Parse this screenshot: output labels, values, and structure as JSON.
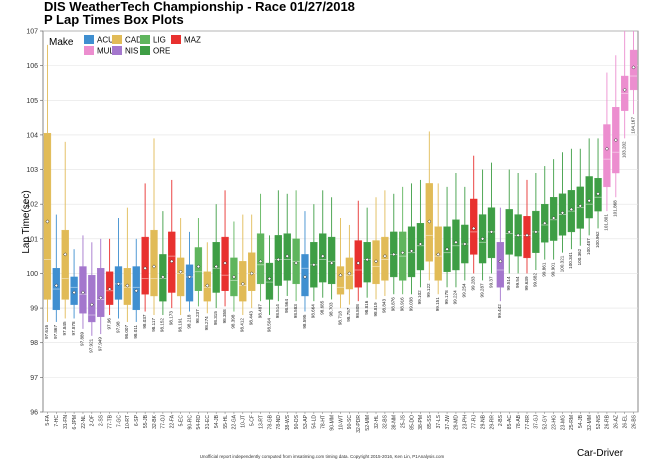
{
  "chart_data": {
    "type": "box",
    "title": "DIS WeatherTech Championship - Race 01/27/2018",
    "subtitle": "P Lap Times Box Plots",
    "xlabel": "Car-Driver",
    "ylabel": "Lap Time(sec)",
    "ylim": [
      96,
      107
    ],
    "yticks": [
      96,
      97,
      98,
      99,
      100,
      101,
      102,
      103,
      104,
      105,
      106,
      107
    ],
    "legend": {
      "title": "Make",
      "position": "top-left",
      "items": [
        {
          "name": "ACU",
          "color": "#3f8fd0"
        },
        {
          "name": "CAD",
          "color": "#e1bb57"
        },
        {
          "name": "LIG",
          "color": "#5fb55d"
        },
        {
          "name": "MAZ",
          "color": "#e8312f"
        },
        {
          "name": "MUL",
          "color": "#ec8ecf"
        },
        {
          "name": "NIS",
          "color": "#a477cd"
        },
        {
          "name": "ORE",
          "color": "#3e9e45"
        }
      ]
    },
    "footer": "Unofficial report independently computed from imsatiming.com timing data. Copyright 2015-2016, Ken Lin, P1Analysis.com",
    "series": [
      {
        "label": "5-FA",
        "make": "CAD",
        "q1": 99.25,
        "median": 100.4,
        "q3": 104.05,
        "mean": 101.5,
        "lo": 98.6,
        "hi": 106.6,
        "best": "97.616"
      },
      {
        "label": "7-HC",
        "make": "ACU",
        "q1": 98.95,
        "median": 99.55,
        "q3": 100.15,
        "mean": 99.65,
        "lo": 98.6,
        "hi": 101.7,
        "best": "97.867"
      },
      {
        "label": "31-FN",
        "make": "CAD",
        "q1": 99.25,
        "median": 99.85,
        "q3": 101.25,
        "mean": 100.55,
        "lo": 98.7,
        "hi": 103.8,
        "best": "97.845"
      },
      {
        "label": "6-JPM",
        "make": "ACU",
        "q1": 99.1,
        "median": 99.6,
        "q3": 99.9,
        "mean": 99.45,
        "lo": 98.7,
        "hi": 100.7,
        "best": "97.878"
      },
      {
        "label": "22-NL",
        "make": "NIS",
        "q1": 98.85,
        "median": 99.4,
        "q3": 100.2,
        "mean": 99.45,
        "lo": 98.4,
        "hi": 101.1,
        "best": "97.889"
      },
      {
        "label": "2-OF",
        "make": "NIS",
        "q1": 98.6,
        "median": 98.8,
        "q3": 99.95,
        "mean": 99.1,
        "lo": 98.2,
        "hi": 100.9,
        "best": "97.921"
      },
      {
        "label": "2-SS",
        "make": "NIS",
        "q1": 98.75,
        "median": 99.25,
        "q3": 100.15,
        "mean": 99.3,
        "lo": 98.25,
        "hi": 101.0,
        "best": "97.949"
      },
      {
        "label": "77-TB",
        "make": "MAZ",
        "q1": 99.1,
        "median": 99.5,
        "q3": 100.05,
        "mean": 99.55,
        "lo": 98.8,
        "hi": 101.0,
        "best": "97.96"
      },
      {
        "label": "7-GC",
        "make": "ACU",
        "q1": 99.25,
        "median": 99.7,
        "q3": 100.2,
        "mean": 99.7,
        "lo": 98.7,
        "hi": 101.6,
        "best": "97.98"
      },
      {
        "label": "10-RT",
        "make": "CAD",
        "q1": 99.1,
        "median": 99.6,
        "q3": 100.15,
        "mean": 99.65,
        "lo": 98.6,
        "hi": 101.9,
        "best": "98.007"
      },
      {
        "label": "6-SP",
        "make": "ACU",
        "q1": 98.95,
        "median": 99.6,
        "q3": 100.2,
        "mean": 99.5,
        "lo": 98.6,
        "hi": 101.0,
        "best": "98.011"
      },
      {
        "label": "55-JB",
        "make": "MAZ",
        "q1": 99.4,
        "median": 99.85,
        "q3": 101.05,
        "mean": 100.15,
        "lo": 98.9,
        "hi": 102.6,
        "best": "98.037"
      },
      {
        "label": "32-BK",
        "make": "CAD",
        "q1": 99.35,
        "median": 99.85,
        "q3": 101.25,
        "mean": 100.2,
        "lo": 98.8,
        "hi": 103.9,
        "best": "98.117"
      },
      {
        "label": "77-OJ",
        "make": "ORE",
        "q1": 99.2,
        "median": 99.85,
        "q3": 100.55,
        "mean": 99.9,
        "lo": 98.8,
        "hi": 101.8,
        "best": "98.152"
      },
      {
        "label": "22-FA",
        "make": "MAZ",
        "q1": 99.45,
        "median": 100.5,
        "q3": 101.2,
        "mean": 100.35,
        "lo": 99.0,
        "hi": 102.7,
        "best": "98.173"
      },
      {
        "label": "5-EC",
        "make": "CAD",
        "q1": 99.35,
        "median": 100.0,
        "q3": 100.45,
        "mean": 100.05,
        "lo": 98.8,
        "hi": 101.6,
        "best": "98.191"
      },
      {
        "label": "90-RC",
        "make": "ACU",
        "q1": 99.2,
        "median": 99.9,
        "q3": 100.25,
        "mean": 99.9,
        "lo": 98.9,
        "hi": 101.2,
        "best": "98.218"
      },
      {
        "label": "54-RD",
        "make": "LIG",
        "q1": 99.5,
        "median": 100.05,
        "q3": 100.75,
        "mean": 100.2,
        "lo": 99.05,
        "hi": 101.6,
        "best": "98.237"
      },
      {
        "label": "31-EC",
        "make": "CAD",
        "q1": 99.2,
        "median": 99.6,
        "q3": 100.05,
        "mean": 99.65,
        "lo": 98.85,
        "hi": 100.9,
        "best": "98.274"
      },
      {
        "label": "54-JB",
        "make": "ORE",
        "q1": 99.45,
        "median": 100.15,
        "q3": 100.9,
        "mean": 100.2,
        "lo": 99.0,
        "hi": 102.0,
        "best": "98.315"
      },
      {
        "label": "55-HL",
        "make": "MAZ",
        "q1": 99.5,
        "median": 99.95,
        "q3": 101.05,
        "mean": 100.3,
        "lo": 99.05,
        "hi": 102.4,
        "best": "98.358"
      },
      {
        "label": "22-GA",
        "make": "LIG",
        "q1": 99.35,
        "median": 99.8,
        "q3": 100.45,
        "mean": 99.9,
        "lo": 98.9,
        "hi": 101.5,
        "best": "98.398"
      },
      {
        "label": "10-JT",
        "make": "CAD",
        "q1": 99.2,
        "median": 99.65,
        "q3": 100.35,
        "mean": 99.7,
        "lo": 98.8,
        "hi": 101.7,
        "best": "98.412"
      },
      {
        "label": "5-CF",
        "make": "CAD",
        "q1": 99.5,
        "median": 100.0,
        "q3": 100.6,
        "mean": 100.0,
        "lo": 99.0,
        "hi": 101.7,
        "best": "98.443"
      },
      {
        "label": "13-RT",
        "make": "LIG",
        "q1": 99.7,
        "median": 100.25,
        "q3": 101.15,
        "mean": 100.35,
        "lo": 99.2,
        "hi": 102.3,
        "best": "98.487"
      },
      {
        "label": "78-GB",
        "make": "ORE",
        "q1": 99.25,
        "median": 99.75,
        "q3": 100.3,
        "mean": 99.85,
        "lo": 98.8,
        "hi": 101.1,
        "best": "98.504"
      },
      {
        "label": "78-ND",
        "make": "ORE",
        "q1": 99.65,
        "median": 100.4,
        "q3": 101.1,
        "mean": 100.4,
        "lo": 99.2,
        "hi": 102.4,
        "best": "98.514"
      },
      {
        "label": "38-WS",
        "make": "ORE",
        "q1": 99.8,
        "median": 100.4,
        "q3": 101.15,
        "mean": 100.5,
        "lo": 99.35,
        "hi": 102.3,
        "best": "98.564"
      },
      {
        "label": "90-DS",
        "make": "LIG",
        "q1": 99.7,
        "median": 100.35,
        "q3": 101.0,
        "mean": 100.3,
        "lo": 99.2,
        "hi": 102.4,
        "best": "98.583"
      },
      {
        "label": "53-AP",
        "make": "ACU",
        "q1": 99.35,
        "median": 100.15,
        "q3": 100.55,
        "mean": 99.9,
        "lo": 98.9,
        "hi": 101.8,
        "best": "98.595"
      },
      {
        "label": "54-LD",
        "make": "ORE",
        "q1": 99.6,
        "median": 100.25,
        "q3": 100.9,
        "mean": 100.25,
        "lo": 99.2,
        "hi": 102.0,
        "best": "98.664"
      },
      {
        "label": "78-HT",
        "make": "ORE",
        "q1": 99.75,
        "median": 100.4,
        "q3": 101.15,
        "mean": 100.5,
        "lo": 99.3,
        "hi": 102.4,
        "best": "98.685"
      },
      {
        "label": "90-MM",
        "make": "ORE",
        "q1": 99.7,
        "median": 100.35,
        "q3": 101.05,
        "mean": 100.3,
        "lo": 99.25,
        "hi": 102.2,
        "best": "98.703"
      },
      {
        "label": "10-WT",
        "make": "CAD",
        "q1": 99.4,
        "median": 99.6,
        "q3": 100.2,
        "mean": 99.95,
        "lo": 99.0,
        "hi": 101.6,
        "best": "98.718"
      },
      {
        "label": "90-SC",
        "make": "CAD",
        "q1": 99.55,
        "median": 99.95,
        "q3": 100.45,
        "mean": 100.0,
        "lo": 99.1,
        "hi": 101.4,
        "best": "98.757"
      },
      {
        "label": "32-PDR",
        "make": "MAZ",
        "q1": 99.6,
        "median": 100.1,
        "q3": 100.95,
        "mean": 100.3,
        "lo": 99.2,
        "hi": 102.1,
        "best": "98.808"
      },
      {
        "label": "52-MM",
        "make": "ORE",
        "q1": 99.75,
        "median": 100.4,
        "q3": 100.9,
        "mean": 100.4,
        "lo": 99.3,
        "hi": 101.9,
        "best": "98.816"
      },
      {
        "label": "32-HL",
        "make": "CAD",
        "q1": 99.7,
        "median": 100.2,
        "q3": 100.95,
        "mean": 100.35,
        "lo": 99.25,
        "hi": 102.2,
        "best": "98.819"
      },
      {
        "label": "32-BS",
        "make": "CAD",
        "q1": 99.8,
        "median": 100.4,
        "q3": 101.05,
        "mean": 100.5,
        "lo": 99.35,
        "hi": 102.4,
        "best": "98.843"
      },
      {
        "label": "38-NM",
        "make": "ORE",
        "q1": 99.9,
        "median": 100.55,
        "q3": 101.2,
        "mean": 100.55,
        "lo": 99.4,
        "hi": 102.3,
        "best": "98.876"
      },
      {
        "label": "25-JS",
        "make": "LIG",
        "q1": 99.8,
        "median": 100.5,
        "q3": 101.2,
        "mean": 100.6,
        "lo": 99.4,
        "hi": 102.5,
        "best": "98.916"
      },
      {
        "label": "85-DO",
        "make": "ORE",
        "q1": 99.9,
        "median": 100.6,
        "q3": 101.35,
        "mean": 100.65,
        "lo": 99.4,
        "hi": 102.6,
        "best": "99.038"
      },
      {
        "label": "38-PM",
        "make": "ORE",
        "q1": 100.1,
        "median": 100.8,
        "q3": 101.45,
        "mean": 100.85,
        "lo": 99.6,
        "hi": 102.7,
        "best": "99.102"
      },
      {
        "label": "85-SS",
        "make": "CAD",
        "q1": 100.35,
        "median": 101.1,
        "q3": 102.6,
        "mean": 101.5,
        "lo": 99.8,
        "hi": 104.1,
        "best": "99.122"
      },
      {
        "label": "37-LS",
        "make": "CAD",
        "q1": 99.8,
        "median": 100.5,
        "q3": 101.35,
        "mean": 100.55,
        "lo": 99.4,
        "hi": 102.6,
        "best": "99.151"
      },
      {
        "label": "37-JW",
        "make": "ORE",
        "q1": 100.05,
        "median": 100.6,
        "q3": 101.35,
        "mean": 100.7,
        "lo": 99.6,
        "hi": 102.5,
        "best": "99.178"
      },
      {
        "label": "29-MD",
        "make": "ORE",
        "q1": 100.1,
        "median": 100.8,
        "q3": 101.55,
        "mean": 100.9,
        "lo": 99.6,
        "hi": 102.9,
        "best": "99.224"
      },
      {
        "label": "23-PH",
        "make": "ORE",
        "q1": 100.3,
        "median": 100.85,
        "q3": 101.4,
        "mean": 100.85,
        "lo": 99.8,
        "hi": 102.5,
        "best": "99.254"
      },
      {
        "label": "77-RJ",
        "make": "MAZ",
        "q1": 100.55,
        "median": 101.2,
        "q3": 102.15,
        "mean": 101.3,
        "lo": 100.0,
        "hi": 103.4,
        "best": "99.283"
      },
      {
        "label": "29-NB",
        "make": "ORE",
        "q1": 100.3,
        "median": 100.9,
        "q3": 101.7,
        "mean": 101.0,
        "lo": 99.8,
        "hi": 103.0,
        "best": "99.287"
      },
      {
        "label": "29-RR",
        "make": "ORE",
        "q1": 100.45,
        "median": 101.2,
        "q3": 101.9,
        "mean": 101.2,
        "lo": 100.0,
        "hi": 103.2,
        "best": "99.37"
      },
      {
        "label": "2-BS",
        "make": "NIS",
        "q1": 99.6,
        "median": 100.1,
        "q3": 100.9,
        "mean": 100.35,
        "lo": 99.2,
        "hi": 101.9,
        "best": "99.442"
      },
      {
        "label": "85-AC",
        "make": "ORE",
        "q1": 100.55,
        "median": 101.15,
        "q3": 101.85,
        "mean": 101.2,
        "lo": 100.0,
        "hi": 103.0,
        "best": "99.514"
      },
      {
        "label": "78-AB",
        "make": "ORE",
        "q1": 100.5,
        "median": 101.1,
        "q3": 101.7,
        "mean": 101.1,
        "lo": 100.0,
        "hi": 102.9,
        "best": "99.54"
      },
      {
        "label": "77-RR",
        "make": "MAZ",
        "q1": 100.45,
        "median": 101.1,
        "q3": 101.65,
        "mean": 101.1,
        "lo": 100.0,
        "hi": 102.7,
        "best": "99.639"
      },
      {
        "label": "37-GJ",
        "make": "ORE",
        "q1": 100.6,
        "median": 101.2,
        "q3": 101.8,
        "mean": 101.2,
        "lo": 100.1,
        "hi": 102.9,
        "best": "99.682"
      },
      {
        "label": "52-GY",
        "make": "ORE",
        "q1": 100.9,
        "median": 101.4,
        "q3": 102.0,
        "mean": 101.45,
        "lo": 100.4,
        "hi": 103.1,
        "best": "99.861"
      },
      {
        "label": "23-HG",
        "make": "ORE",
        "q1": 100.95,
        "median": 101.55,
        "q3": 102.2,
        "mean": 101.6,
        "lo": 100.4,
        "hi": 103.3,
        "best": "99.901"
      },
      {
        "label": "23-MG",
        "make": "ORE",
        "q1": 101.1,
        "median": 101.7,
        "q3": 102.3,
        "mean": 101.75,
        "lo": 100.6,
        "hi": 103.5,
        "best": "100.321"
      },
      {
        "label": "25-RM",
        "make": "ORE",
        "q1": 101.2,
        "median": 101.8,
        "q3": 102.4,
        "mean": 101.85,
        "lo": 100.7,
        "hi": 103.6,
        "best": "100.341"
      },
      {
        "label": "54-JB",
        "make": "ORE",
        "q1": 101.3,
        "median": 101.9,
        "q3": 102.5,
        "mean": 101.95,
        "lo": 100.8,
        "hi": 103.6,
        "best": "100.362"
      },
      {
        "label": "32-MM",
        "make": "ORE",
        "q1": 101.6,
        "median": 102.0,
        "q3": 102.8,
        "mean": 102.1,
        "lo": 101.1,
        "hi": 103.9,
        "best": "100.487"
      },
      {
        "label": "52-NS",
        "make": "ORE",
        "q1": 101.8,
        "median": 102.2,
        "q3": 102.75,
        "mean": 102.3,
        "lo": 101.3,
        "hi": 103.9,
        "best": "100.962"
      },
      {
        "label": "26-RB",
        "make": "MUL",
        "q1": 102.5,
        "median": 103.3,
        "q3": 104.3,
        "mean": 103.6,
        "lo": 101.8,
        "hi": 105.8,
        "best": "101.801"
      },
      {
        "label": "26-AZ",
        "make": "MUL",
        "q1": 102.9,
        "median": 103.5,
        "q3": 104.8,
        "mean": 103.85,
        "lo": 102.2,
        "hi": 106.3,
        "best": "101.868"
      },
      {
        "label": "26-EL",
        "make": "MUL",
        "q1": 104.7,
        "median": 105.2,
        "q3": 105.7,
        "mean": 105.3,
        "lo": 103.9,
        "hi": 107.0,
        "best": "103.202"
      },
      {
        "label": "26-BS",
        "make": "MUL",
        "q1": 105.3,
        "median": 105.7,
        "q3": 106.45,
        "mean": 105.95,
        "lo": 104.6,
        "hi": 107.0,
        "best": "104.167"
      }
    ]
  }
}
